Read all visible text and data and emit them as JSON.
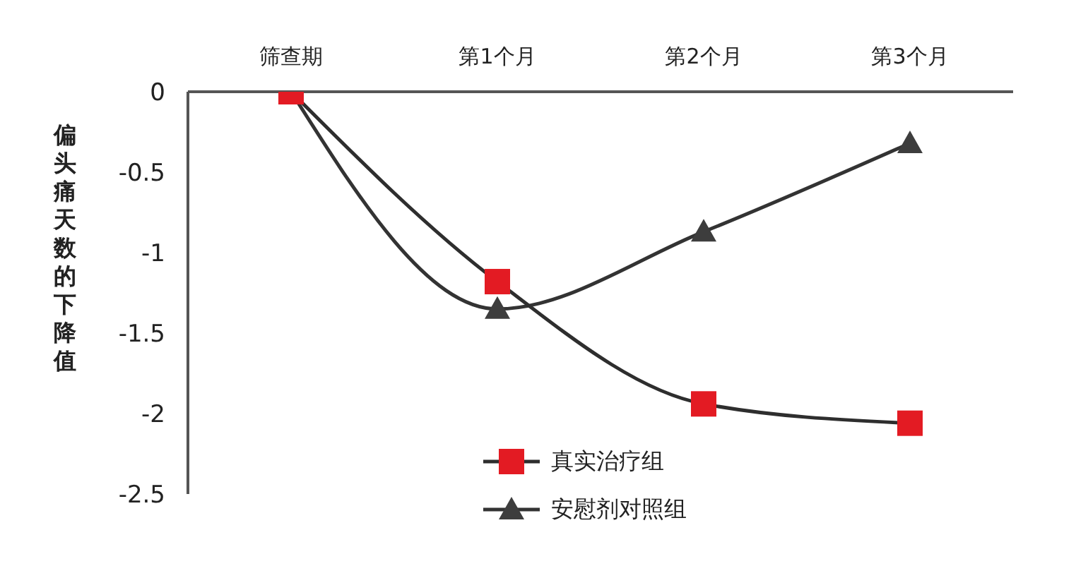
{
  "chart_data": {
    "type": "line",
    "ylabel": "偏头痛天数的下降值",
    "categories": [
      "筛查期",
      "第1个月",
      "第2个月",
      "第3个月"
    ],
    "series": [
      {
        "name": "真实治疗组",
        "color": "#2e2e2e",
        "colors": [
          "#e31b23",
          "#e31b23",
          "#e31b23",
          "#e31b23"
        ],
        "marker": "square",
        "values": [
          0,
          -1.18,
          -1.94,
          -2.06
        ]
      },
      {
        "name": "安慰剂对照组",
        "color": "#333333",
        "colors": [
          "#3d3d3d",
          "#3d3d3d",
          "#3d3d3d",
          "#3d3d3d"
        ],
        "marker": "triangle",
        "values": [
          0,
          -1.35,
          -0.87,
          -0.32
        ]
      }
    ],
    "ylim": [
      -2.5,
      0
    ],
    "yticks": [
      0,
      -0.5,
      -1,
      -1.5,
      -2,
      -2.5
    ],
    "grid": false,
    "legend": "bottom",
    "line_style": "solid"
  }
}
